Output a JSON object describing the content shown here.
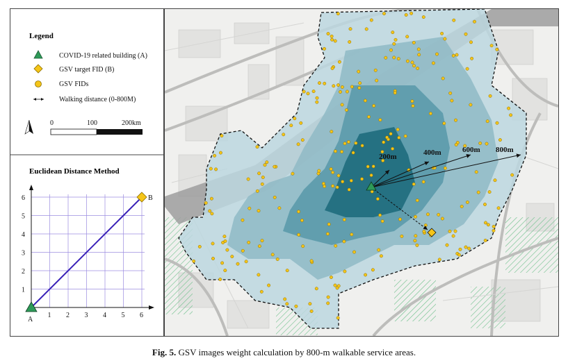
{
  "legend": {
    "title": "Legend",
    "items": [
      {
        "label": "COVID-19 related building (A)",
        "color": "#2e9a58",
        "icon": "green-triangle-icon"
      },
      {
        "label": "GSV target FID (B)",
        "color": "#f5c518",
        "icon": "yellow-diamond-icon"
      },
      {
        "label": "GSV FIDs",
        "color": "#f5c518",
        "icon": "yellow-circle-icon"
      },
      {
        "label": "Walking distance (0-800M)",
        "icon": "double-arrow-icon"
      }
    ],
    "scale": {
      "labels": [
        "0",
        "100",
        "200km"
      ]
    }
  },
  "euclid": {
    "title": "Euclidean Distance Method",
    "y_ticks": [
      "1",
      "2",
      "3",
      "4",
      "5",
      "6"
    ],
    "x_ticks": [
      "1",
      "2",
      "3",
      "4",
      "5",
      "6"
    ],
    "origin_label": "A",
    "point_label": "B",
    "line_from": [
      0,
      0
    ],
    "line_to": [
      6,
      6
    ],
    "line_color": "#3a22b8"
  },
  "map": {
    "distance_labels": [
      "200m",
      "400m",
      "600m",
      "800m"
    ]
  },
  "caption": {
    "fig": "Fig. 5.",
    "text": "GSV images weight calculation by 800-m walkable service areas."
  }
}
